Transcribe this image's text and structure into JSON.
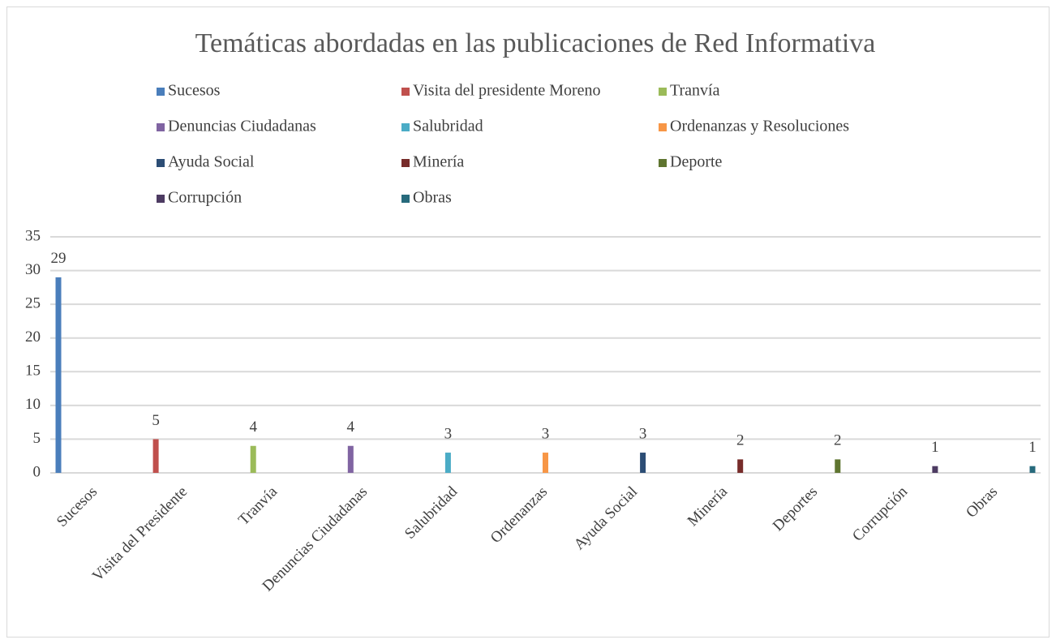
{
  "chart_data": {
    "type": "bar",
    "title": "Temáticas abordadas en las publicaciones de Red Informativa",
    "categories": [
      "Sucesos",
      "Visita del Presidente",
      "Tranvía",
      "Denuncias Ciudadanas",
      "Salubridad",
      "Ordenanzas",
      "Ayuda Social",
      "Minería",
      "Deportes",
      "Corrupción",
      "Obras"
    ],
    "series": [
      {
        "name": "Sucesos",
        "color": "#4a7ebb",
        "values": [
          29,
          null,
          null,
          null,
          null,
          null,
          null,
          null,
          null,
          null,
          null
        ]
      },
      {
        "name": "Visita del presidente Moreno",
        "color": "#c0504d",
        "values": [
          null,
          5,
          null,
          null,
          null,
          null,
          null,
          null,
          null,
          null,
          null
        ]
      },
      {
        "name": "Tranvía",
        "color": "#9bbb59",
        "values": [
          null,
          null,
          4,
          null,
          null,
          null,
          null,
          null,
          null,
          null,
          null
        ]
      },
      {
        "name": "Denuncias Ciudadanas",
        "color": "#8064a2",
        "values": [
          null,
          null,
          null,
          4,
          null,
          null,
          null,
          null,
          null,
          null,
          null
        ]
      },
      {
        "name": "Salubridad",
        "color": "#4bacc6",
        "values": [
          null,
          null,
          null,
          null,
          3,
          null,
          null,
          null,
          null,
          null,
          null
        ]
      },
      {
        "name": "Ordenanzas y Resoluciones",
        "color": "#f79646",
        "values": [
          null,
          null,
          null,
          null,
          null,
          3,
          null,
          null,
          null,
          null,
          null
        ]
      },
      {
        "name": "Ayuda Social",
        "color": "#2c4d75",
        "values": [
          null,
          null,
          null,
          null,
          null,
          null,
          3,
          null,
          null,
          null,
          null
        ]
      },
      {
        "name": "Minería",
        "color": "#772c2a",
        "values": [
          null,
          null,
          null,
          null,
          null,
          null,
          null,
          2,
          null,
          null,
          null
        ]
      },
      {
        "name": "Deporte",
        "color": "#5f7530",
        "values": [
          null,
          null,
          null,
          null,
          null,
          null,
          null,
          null,
          2,
          null,
          null
        ]
      },
      {
        "name": "Corrupción",
        "color": "#4d3b62",
        "values": [
          null,
          null,
          null,
          null,
          null,
          null,
          null,
          null,
          null,
          1,
          null
        ]
      },
      {
        "name": "Obras",
        "color": "#276a7c",
        "values": [
          null,
          null,
          null,
          null,
          null,
          null,
          null,
          null,
          null,
          null,
          1
        ]
      }
    ],
    "ylim": [
      0,
      35
    ],
    "yticks": [
      0,
      5,
      10,
      15,
      20,
      25,
      30,
      35
    ],
    "grid": true,
    "legend": "top"
  }
}
